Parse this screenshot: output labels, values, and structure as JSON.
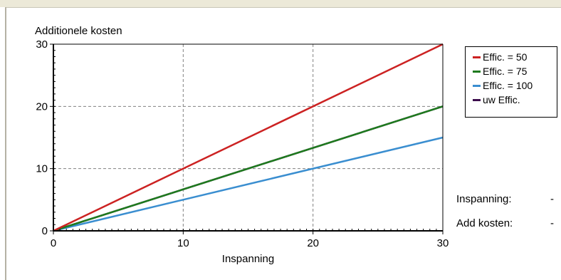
{
  "chart_data": {
    "type": "line",
    "ylabel": "Additionele kosten",
    "xlabel": "Inspanning",
    "xlim": [
      0,
      30
    ],
    "ylim": [
      0,
      30
    ],
    "x_ticks": [
      0,
      10,
      20,
      30
    ],
    "y_ticks": [
      0,
      10,
      20,
      30
    ],
    "grid": true,
    "grid_style": "dashed",
    "legend_position": "right",
    "series": [
      {
        "name": "Effic. = 50",
        "color": "#cc2222",
        "x": [
          0,
          30
        ],
        "y": [
          0,
          30
        ]
      },
      {
        "name": "Effic. = 75",
        "color": "#1e7a1e",
        "x": [
          0,
          30
        ],
        "y": [
          0,
          20
        ]
      },
      {
        "name": "Effic. = 100",
        "color": "#3a8ed0",
        "x": [
          0,
          30
        ],
        "y": [
          0,
          15
        ]
      },
      {
        "name": "uw Effic.",
        "color": "#3c0c4c",
        "x": [
          0,
          30
        ],
        "y": [
          0,
          20
        ]
      }
    ]
  },
  "readouts": {
    "inspanning_label": "Inspanning:",
    "inspanning_value": "-",
    "add_kosten_label": "Add kosten:",
    "add_kosten_value": "-"
  }
}
